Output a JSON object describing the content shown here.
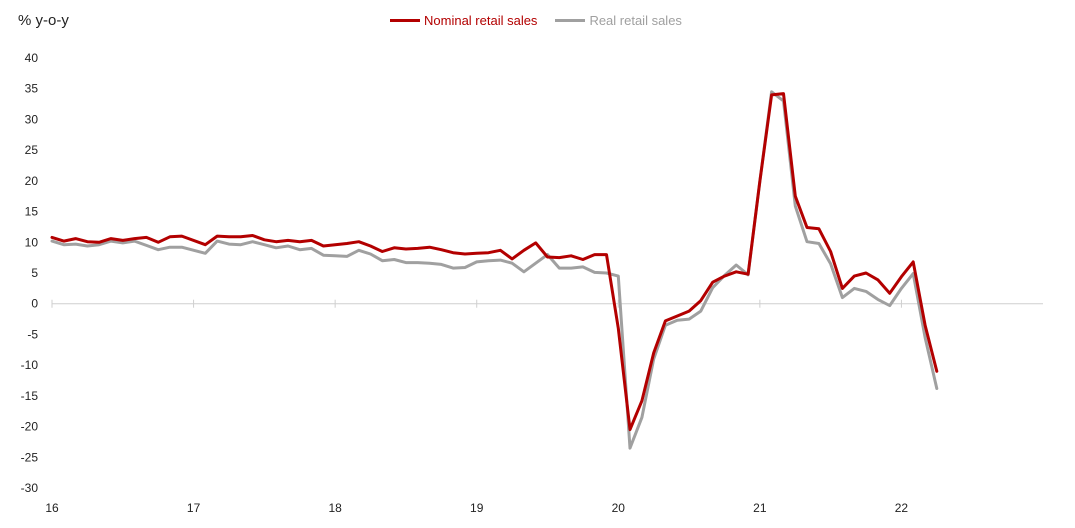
{
  "chart_data": {
    "type": "line",
    "ylabel": "% y-o-y",
    "ylim": [
      -30,
      40
    ],
    "yticks": [
      40,
      35,
      30,
      25,
      20,
      15,
      10,
      5,
      0,
      -5,
      -10,
      -15,
      -20,
      -25,
      -30
    ],
    "x_start_year": 2016,
    "x_end_year": 2023,
    "xticks": [
      "16",
      "17",
      "18",
      "19",
      "20",
      "21",
      "22"
    ],
    "grid": false,
    "legend_position": "top-center",
    "series": [
      {
        "name": "Nominal retail sales",
        "color": "#b30000",
        "x": [
          2016.0,
          2016.083,
          2016.167,
          2016.25,
          2016.333,
          2016.417,
          2016.5,
          2016.583,
          2016.667,
          2016.75,
          2016.833,
          2016.917,
          2017.083,
          2017.167,
          2017.25,
          2017.333,
          2017.417,
          2017.5,
          2017.583,
          2017.667,
          2017.75,
          2017.833,
          2017.917,
          2018.0,
          2018.083,
          2018.167,
          2018.25,
          2018.333,
          2018.417,
          2018.5,
          2018.583,
          2018.667,
          2018.75,
          2018.833,
          2018.917,
          2019.0,
          2019.083,
          2019.167,
          2019.25,
          2019.333,
          2019.417,
          2019.5,
          2019.583,
          2019.667,
          2019.75,
          2019.833,
          2019.917,
          2020.0,
          2020.083,
          2020.167,
          2020.25,
          2020.333,
          2020.417,
          2020.5,
          2020.583,
          2020.667,
          2020.75,
          2020.833,
          2020.917,
          2021.0,
          2021.083,
          2021.167,
          2021.25,
          2021.333,
          2021.417,
          2021.5,
          2021.583,
          2021.667,
          2021.75,
          2021.833,
          2021.917,
          2022.0,
          2022.083,
          2022.167,
          2022.25
        ],
        "values": [
          10.8,
          10.2,
          10.6,
          10.1,
          10.0,
          10.6,
          10.3,
          10.6,
          10.8,
          10.0,
          10.9,
          11.0,
          9.6,
          11.0,
          10.9,
          10.9,
          11.1,
          10.4,
          10.1,
          10.3,
          10.1,
          10.3,
          9.4,
          9.6,
          9.8,
          10.1,
          9.4,
          8.5,
          9.1,
          8.9,
          9.0,
          9.2,
          8.8,
          8.3,
          8.1,
          8.2,
          8.3,
          8.7,
          7.3,
          8.7,
          9.9,
          7.6,
          7.5,
          7.8,
          7.2,
          8.0,
          8.0,
          -4.0,
          -20.5,
          -15.8,
          -8.0,
          -2.8,
          -2.0,
          -1.2,
          0.5,
          3.5,
          4.5,
          5.2,
          4.8,
          20.0,
          34.0,
          34.2,
          17.5,
          12.4,
          12.2,
          8.5,
          2.5,
          4.5,
          5.0,
          3.9,
          1.7,
          4.4,
          6.8,
          -3.5,
          -11.0
        ]
      },
      {
        "name": "Real retail sales",
        "color": "#a0a0a0",
        "x": [
          2016.0,
          2016.083,
          2016.167,
          2016.25,
          2016.333,
          2016.417,
          2016.5,
          2016.583,
          2016.667,
          2016.75,
          2016.833,
          2016.917,
          2017.083,
          2017.167,
          2017.25,
          2017.333,
          2017.417,
          2017.5,
          2017.583,
          2017.667,
          2017.75,
          2017.833,
          2017.917,
          2018.0,
          2018.083,
          2018.167,
          2018.25,
          2018.333,
          2018.417,
          2018.5,
          2018.583,
          2018.667,
          2018.75,
          2018.833,
          2018.917,
          2019.0,
          2019.083,
          2019.167,
          2019.25,
          2019.333,
          2019.417,
          2019.5,
          2019.583,
          2019.667,
          2019.75,
          2019.833,
          2019.917,
          2020.0,
          2020.083,
          2020.167,
          2020.25,
          2020.333,
          2020.417,
          2020.5,
          2020.583,
          2020.667,
          2020.75,
          2020.833,
          2020.917,
          2021.0,
          2021.083,
          2021.167,
          2021.25,
          2021.333,
          2021.417,
          2021.5,
          2021.583,
          2021.667,
          2021.75,
          2021.833,
          2021.917,
          2022.0,
          2022.083,
          2022.167,
          2022.25
        ],
        "values": [
          10.2,
          9.6,
          9.7,
          9.4,
          9.6,
          10.2,
          9.9,
          10.2,
          9.5,
          8.8,
          9.2,
          9.2,
          8.2,
          10.2,
          9.7,
          9.6,
          10.1,
          9.6,
          9.1,
          9.4,
          8.8,
          9.0,
          7.9,
          7.8,
          7.7,
          8.7,
          8.1,
          7.0,
          7.2,
          6.7,
          6.7,
          6.6,
          6.4,
          5.8,
          5.9,
          6.8,
          7.0,
          7.1,
          6.6,
          5.2,
          6.6,
          8.0,
          5.8,
          5.8,
          6.0,
          5.1,
          5.0,
          4.5,
          -23.5,
          -18.5,
          -9.0,
          -3.5,
          -2.7,
          -2.5,
          -1.2,
          2.6,
          4.6,
          6.3,
          4.7,
          20.0,
          34.5,
          33.0,
          15.9,
          10.1,
          9.8,
          6.5,
          1.0,
          2.5,
          2.0,
          0.7,
          -0.3,
          2.5,
          4.9,
          -5.5,
          -13.8
        ]
      }
    ]
  }
}
